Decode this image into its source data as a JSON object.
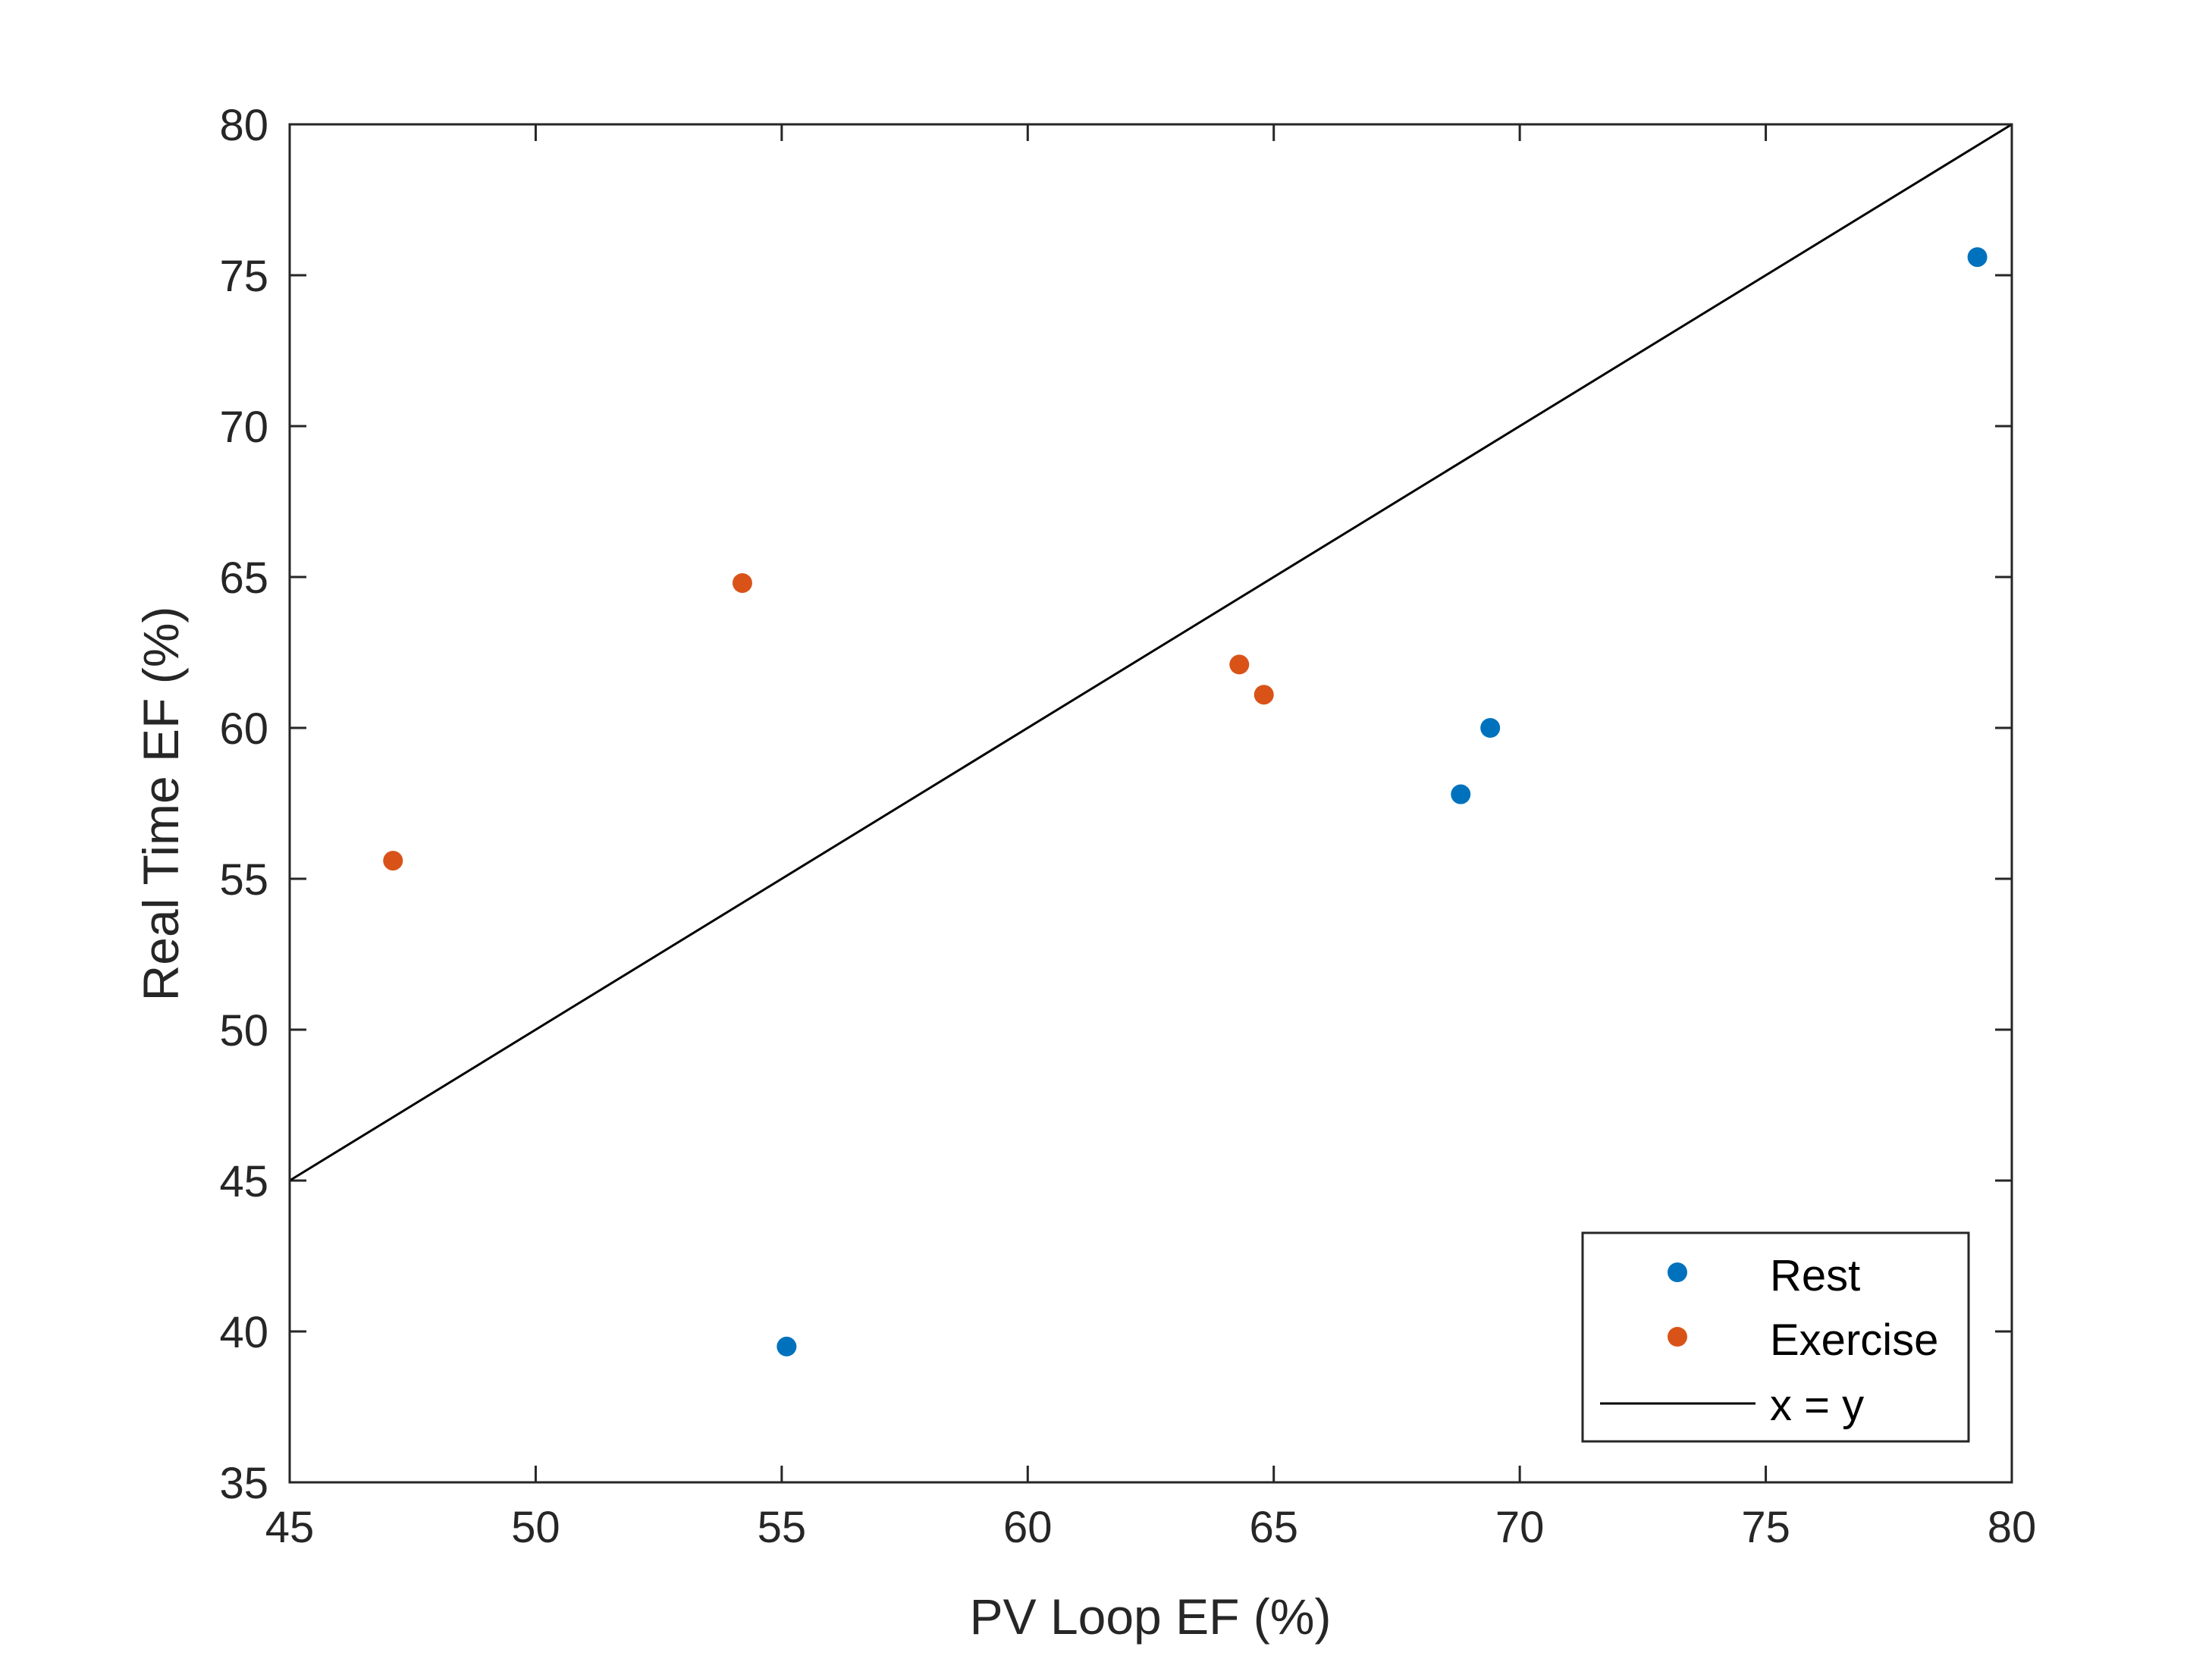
{
  "chart_data": {
    "type": "scatter",
    "title": "",
    "xlabel": "PV Loop EF (%)",
    "ylabel": "Real Time EF (%)",
    "xlim": [
      45,
      80
    ],
    "ylim": [
      35,
      80
    ],
    "xticks": [
      45,
      50,
      55,
      60,
      65,
      70,
      75,
      80
    ],
    "yticks": [
      35,
      40,
      45,
      50,
      55,
      60,
      65,
      70,
      75,
      80
    ],
    "legend_position": "bottom-right",
    "series": [
      {
        "name": "Rest",
        "color": "#0072BD",
        "marker": "circle",
        "x": [
          55.1,
          68.8,
          69.4,
          79.3
        ],
        "y": [
          39.5,
          57.8,
          60.0,
          75.6
        ]
      },
      {
        "name": "Exercise",
        "color": "#D95319",
        "marker": "circle",
        "x": [
          47.1,
          54.2,
          64.3,
          64.8
        ],
        "y": [
          55.6,
          64.8,
          62.1,
          61.1
        ]
      }
    ],
    "reference_line": {
      "name": "x = y",
      "color": "#000000",
      "x": [
        45,
        80
      ],
      "y": [
        45,
        80
      ]
    }
  }
}
